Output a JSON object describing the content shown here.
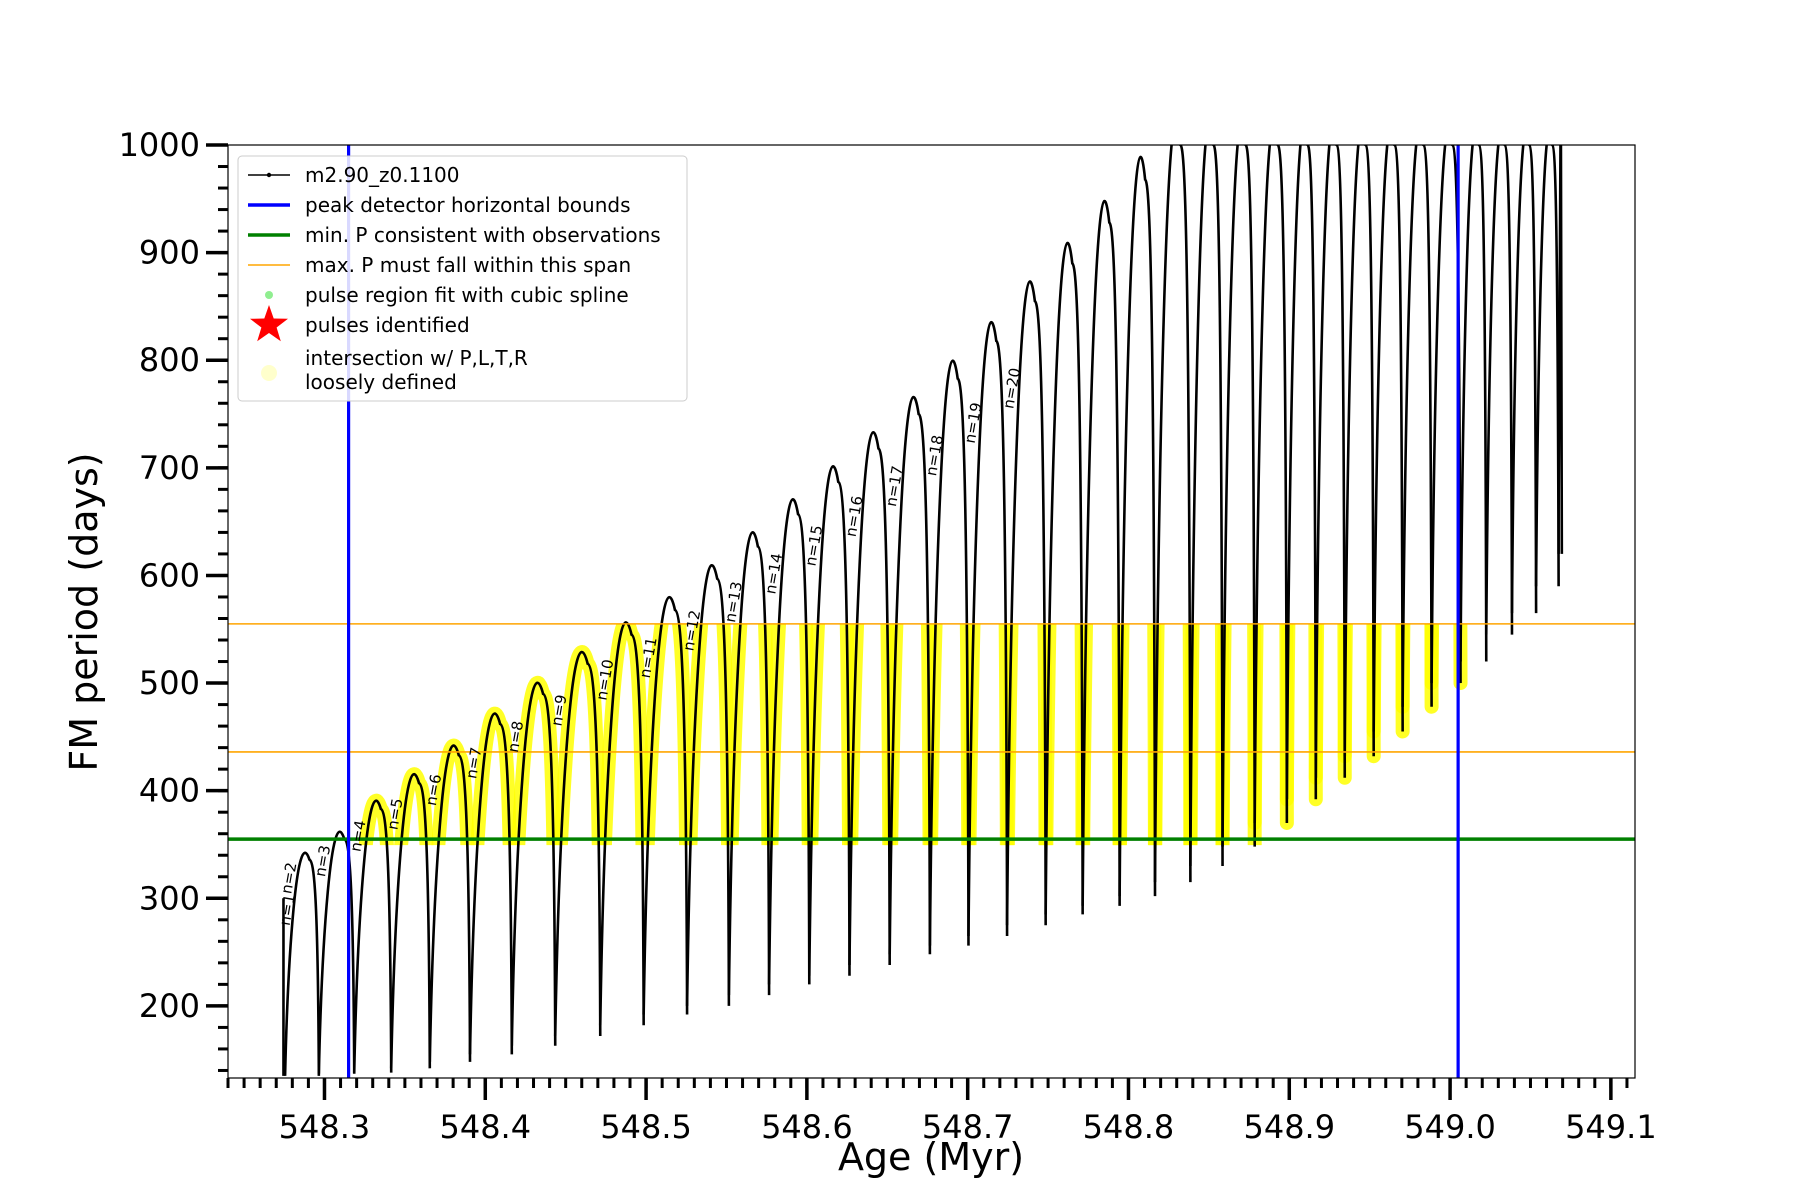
{
  "chart_data": {
    "type": "line",
    "title": "",
    "xlabel": "Age (Myr)",
    "ylabel": "FM period (days)",
    "xlim": [
      548.24,
      549.115
    ],
    "ylim": [
      133,
      1000
    ],
    "xticks": [
      548.3,
      548.4,
      548.5,
      548.6,
      548.7,
      548.8,
      548.9,
      549.0,
      549.1
    ],
    "xtick_labels": [
      "548.3",
      "548.4",
      "548.5",
      "548.6",
      "548.7",
      "548.8",
      "548.9",
      "549.0",
      "549.1"
    ],
    "yticks": [
      200,
      300,
      400,
      500,
      600,
      700,
      800,
      900,
      1000
    ],
    "ytick_labels": [
      "200",
      "300",
      "400",
      "500",
      "600",
      "700",
      "800",
      "900",
      "1000"
    ],
    "legend_position": "top-left",
    "legend": [
      {
        "label": "m2.90_z0.1100",
        "marker": "line-dot",
        "color": "#000000"
      },
      {
        "label": "peak detector horizontal bounds",
        "marker": "line",
        "color": "#0000ff"
      },
      {
        "label": "min. P consistent with observations",
        "marker": "line",
        "color": "#008000"
      },
      {
        "label": "max. P must fall within this span",
        "marker": "thin-line",
        "color": "#ffa500"
      },
      {
        "label": "pulse region fit with cubic spline",
        "marker": "dot",
        "color": "#90ee90"
      },
      {
        "label": "pulses identified",
        "marker": "star",
        "color": "#ff0000"
      },
      {
        "label": "intersection w/ P,L,T,R\nloosely defined",
        "marker": "circle",
        "color": "#ffffcc"
      }
    ],
    "vertical_lines": [
      {
        "x": 548.315,
        "color": "#0000ff"
      },
      {
        "x": 549.005,
        "color": "#0000ff"
      }
    ],
    "horizontal_lines": [
      {
        "y": 355,
        "color": "#008000",
        "role": "min"
      },
      {
        "y": 436,
        "color": "#ffa500",
        "role": "span-low"
      },
      {
        "y": 555,
        "color": "#ffa500",
        "role": "span-high"
      }
    ],
    "highlight_band": {
      "ymin": 355,
      "ymax": 555,
      "xmin": 548.315,
      "xmax": 549.005,
      "color": "#ffff00"
    },
    "series": [
      {
        "name": "m2.90_z0.1100",
        "color": "#000000",
        "pulses": [
          {
            "n": "n=1",
            "start": 548.2745,
            "min": 135,
            "peak": 300,
            "end": 548.2755
          },
          {
            "n": "n=2",
            "start": 548.2755,
            "min": 135,
            "peak": 336,
            "end": 548.2965
          },
          {
            "n": "n=3",
            "start": 548.2965,
            "min": 137,
            "peak": 355,
            "end": 548.3185
          },
          {
            "n": "n=4",
            "start": 548.3185,
            "min": 138,
            "peak": 383,
            "end": 548.3415
          },
          {
            "n": "n=5",
            "start": 548.3415,
            "min": 142,
            "peak": 407,
            "end": 548.3655
          },
          {
            "n": "n=6",
            "start": 548.3655,
            "min": 148,
            "peak": 433,
            "end": 548.3905
          },
          {
            "n": "n=7",
            "start": 548.3905,
            "min": 155,
            "peak": 462,
            "end": 548.4165
          },
          {
            "n": "n=8",
            "start": 548.4165,
            "min": 163,
            "peak": 490,
            "end": 548.4435
          },
          {
            "n": "n=9",
            "start": 548.4435,
            "min": 172,
            "peak": 518,
            "end": 548.4715
          },
          {
            "n": "n=10",
            "start": 548.4715,
            "min": 182,
            "peak": 545,
            "end": 548.4985
          },
          {
            "n": "n=11",
            "start": 548.4985,
            "min": 192,
            "peak": 568,
            "end": 548.5255
          },
          {
            "n": "n=12",
            "start": 548.5255,
            "min": 200,
            "peak": 597,
            "end": 548.5515
          },
          {
            "n": "n=13",
            "start": 548.5515,
            "min": 210,
            "peak": 627,
            "end": 548.5765
          },
          {
            "n": "n=14",
            "start": 548.5765,
            "min": 220,
            "peak": 657,
            "end": 548.6015
          },
          {
            "n": "n=15",
            "start": 548.6015,
            "min": 228,
            "peak": 687,
            "end": 548.6265
          },
          {
            "n": "n=16",
            "start": 548.6265,
            "min": 238,
            "peak": 718,
            "end": 548.6515
          },
          {
            "n": "n=17",
            "start": 548.6515,
            "min": 248,
            "peak": 750,
            "end": 548.6765
          },
          {
            "n": "n=18",
            "start": 548.6765,
            "min": 256,
            "peak": 783,
            "end": 548.7005
          },
          {
            "n": "n=19",
            "start": 548.7005,
            "min": 265,
            "peak": 818,
            "end": 548.7245
          },
          {
            "n": "n=20",
            "start": 548.7245,
            "min": 275,
            "peak": 855,
            "end": 548.7485
          },
          {
            "n": "",
            "start": 548.7485,
            "min": 285,
            "peak": 890,
            "end": 548.7715
          },
          {
            "n": "",
            "start": 548.7715,
            "min": 293,
            "peak": 928,
            "end": 548.7945
          },
          {
            "n": "",
            "start": 548.7945,
            "min": 302,
            "peak": 968,
            "end": 548.8165
          },
          {
            "n": "",
            "start": 548.8165,
            "min": 315,
            "peak": 1000,
            "end": 548.8385
          },
          {
            "n": "",
            "start": 548.8385,
            "min": 330,
            "peak": 1000,
            "end": 548.8585
          },
          {
            "n": "",
            "start": 548.8585,
            "min": 348,
            "peak": 1000,
            "end": 548.8785
          },
          {
            "n": "",
            "start": 548.8785,
            "min": 370,
            "peak": 1000,
            "end": 548.8985
          },
          {
            "n": "",
            "start": 548.8985,
            "min": 392,
            "peak": 1000,
            "end": 548.9165
          },
          {
            "n": "",
            "start": 548.9165,
            "min": 412,
            "peak": 1000,
            "end": 548.9345
          },
          {
            "n": "",
            "start": 548.9345,
            "min": 432,
            "peak": 1000,
            "end": 548.9525
          },
          {
            "n": "",
            "start": 548.9525,
            "min": 455,
            "peak": 1000,
            "end": 548.9705
          },
          {
            "n": "",
            "start": 548.9705,
            "min": 478,
            "peak": 1000,
            "end": 548.9885
          },
          {
            "n": "",
            "start": 548.9885,
            "min": 500,
            "peak": 1000,
            "end": 549.0065
          },
          {
            "n": "",
            "start": 549.0065,
            "min": 520,
            "peak": 1000,
            "end": 549.0225
          },
          {
            "n": "",
            "start": 549.0225,
            "min": 545,
            "peak": 1000,
            "end": 549.0385
          },
          {
            "n": "",
            "start": 549.0385,
            "min": 565,
            "peak": 1000,
            "end": 549.0535
          },
          {
            "n": "",
            "start": 549.0535,
            "min": 590,
            "peak": 1000,
            "end": 549.0675
          },
          {
            "n": "",
            "start": 549.0675,
            "min": 620,
            "peak": 1000,
            "end": 549.0695
          }
        ]
      }
    ]
  }
}
